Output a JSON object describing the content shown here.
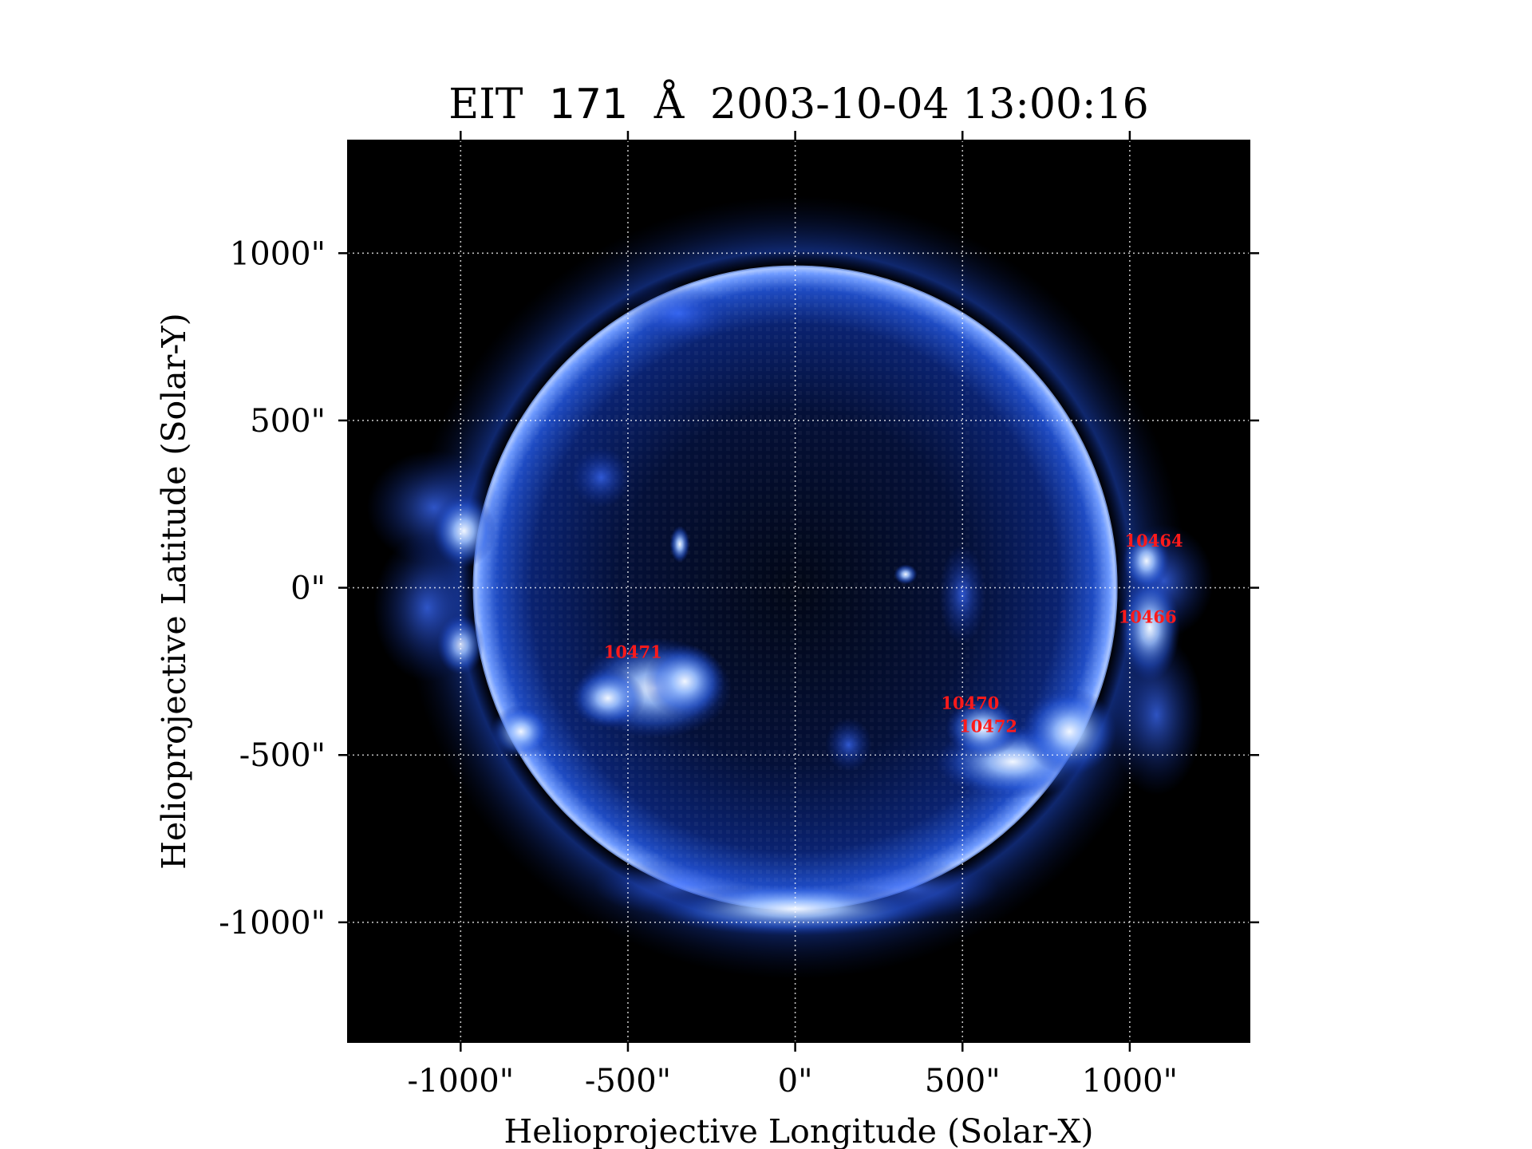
{
  "title": {
    "instrument": "EIT",
    "wavelength": "171",
    "unit": "Å",
    "timestamp": "2003-10-04 13:00:16"
  },
  "axes": {
    "xlabel": "Helioprojective Longitude (Solar-X)",
    "ylabel": "Helioprojective Latitude (Solar-Y)",
    "x_ticks": [
      -1000,
      -500,
      0,
      500,
      1000
    ],
    "y_ticks": [
      -1000,
      -500,
      0,
      500,
      1000
    ],
    "tick_suffix": "\"",
    "xlim": [
      -1337,
      1358
    ],
    "ylim": [
      -1358,
      1337
    ],
    "grid": true
  },
  "image": {
    "colormap": "sohoeit171",
    "background_color": "#000000",
    "disk_color": "#0a1a66",
    "limb_color": "#6f9bff",
    "bright_color": "#e8f0ff",
    "solar_radius_arcsec": 960
  },
  "active_regions": [
    {
      "label": "10464",
      "x": 1072,
      "y": 123
    },
    {
      "label": "10466",
      "x": 1053,
      "y": -105
    },
    {
      "label": "10471",
      "x": -485,
      "y": -210
    },
    {
      "label": "10470",
      "x": 523,
      "y": -362
    },
    {
      "label": "10472",
      "x": 577,
      "y": -432
    }
  ],
  "colors": {
    "ar_label": "#ff1a1a",
    "grid": "#ffffff",
    "text": "#000000"
  }
}
